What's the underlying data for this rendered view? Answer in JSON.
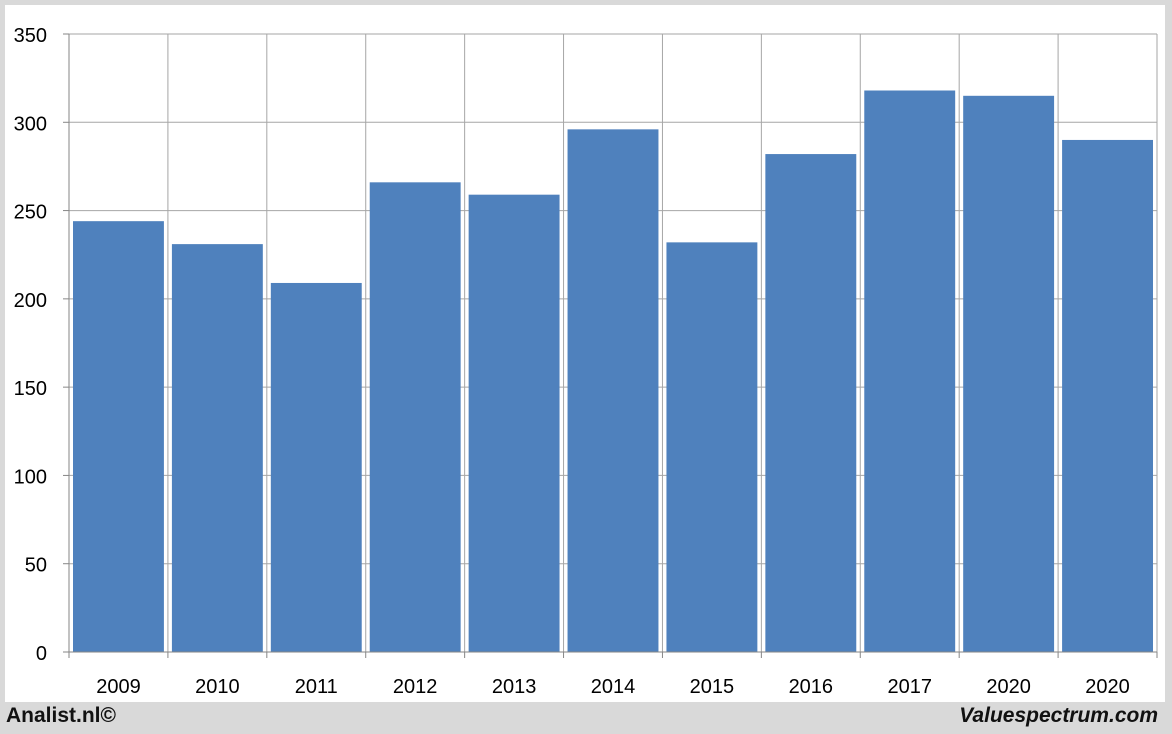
{
  "chart_data": {
    "type": "bar",
    "title": "",
    "xlabel": "",
    "ylabel": "",
    "categories": [
      "2009",
      "2010",
      "2011",
      "2012",
      "2013",
      "2014",
      "2015",
      "2016",
      "2017",
      "2020",
      "2020"
    ],
    "values": [
      244,
      231,
      209,
      266,
      259,
      296,
      232,
      282,
      318,
      315,
      290
    ],
    "ylim": [
      0,
      350
    ],
    "yticks": [
      "0",
      "50",
      "100",
      "150",
      "200",
      "250",
      "300",
      "350"
    ],
    "grid": true,
    "legend": "none",
    "bar_color": "#4f81bd"
  },
  "footer": {
    "left_text": "Analist.nl©",
    "right_text": "Valuespectrum.com"
  }
}
